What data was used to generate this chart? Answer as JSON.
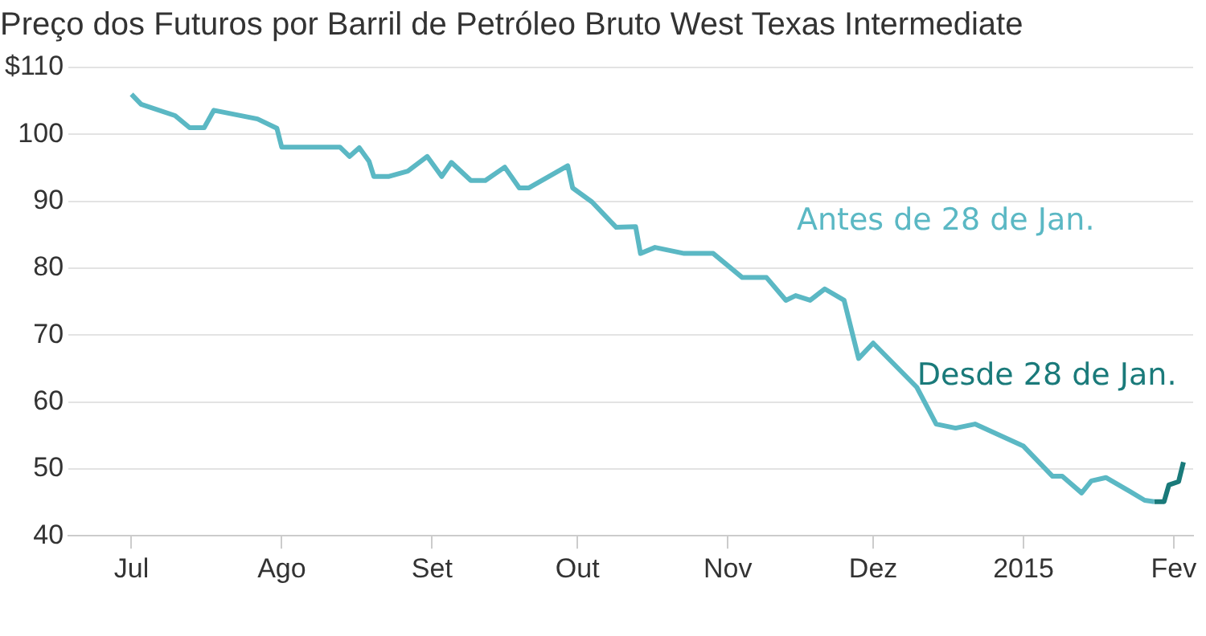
{
  "chart_data": {
    "type": "line",
    "title": "Preço dos Futuros por Barril de Petróleo Bruto West Texas Intermediate",
    "series": [
      {
        "name": "Antes de 28 de Jan.",
        "color": "#5bb8c4",
        "x": [
          "2014-07-01",
          "2014-07-03",
          "2014-07-10",
          "2014-07-13",
          "2014-07-16",
          "2014-07-18",
          "2014-07-27",
          "2014-07-31",
          "2014-08-01",
          "2014-08-13",
          "2014-08-15",
          "2014-08-17",
          "2014-08-19",
          "2014-08-20",
          "2014-08-23",
          "2014-08-27",
          "2014-08-31",
          "2014-09-03",
          "2014-09-05",
          "2014-09-09",
          "2014-09-12",
          "2014-09-16",
          "2014-09-19",
          "2014-09-21",
          "2014-09-29",
          "2014-09-30",
          "2014-10-04",
          "2014-10-09",
          "2014-10-13",
          "2014-10-14",
          "2014-10-17",
          "2014-10-23",
          "2014-10-29",
          "2014-11-04",
          "2014-11-09",
          "2014-11-13",
          "2014-11-15",
          "2014-11-18",
          "2014-11-21",
          "2014-11-25",
          "2014-11-28",
          "2014-12-01",
          "2014-12-10",
          "2014-12-14",
          "2014-12-18",
          "2014-12-22",
          "2015-01-01",
          "2015-01-07",
          "2015-01-09",
          "2015-01-13",
          "2015-01-15",
          "2015-01-18",
          "2015-01-23",
          "2015-01-26",
          "2015-01-28"
        ],
        "values": [
          106,
          104.5,
          102.8,
          101,
          101,
          103.6,
          102.3,
          100.9,
          98.1,
          98.1,
          96.7,
          98,
          96,
          93.7,
          93.7,
          94.5,
          96.7,
          93.7,
          95.8,
          93.1,
          93.1,
          95.1,
          92,
          92,
          95.3,
          92,
          89.9,
          86.1,
          86.2,
          82.2,
          83.1,
          82.2,
          82.2,
          78.6,
          78.6,
          75.2,
          75.9,
          75.2,
          76.9,
          75.2,
          66.5,
          68.8,
          62.2,
          56.7,
          56.1,
          56.7,
          53.4,
          48.9,
          48.9,
          46.4,
          48.2,
          48.7,
          46.6,
          45.3,
          45.1
        ]
      },
      {
        "name": "Desde 28 de Jan.",
        "color": "#1a7a7a",
        "x": [
          "2015-01-28",
          "2015-01-30",
          "2015-01-31",
          "2015-02-02",
          "2015-02-03"
        ],
        "values": [
          45.1,
          45.1,
          47.6,
          48.1,
          51
        ]
      }
    ],
    "xlim": [
      "2014-06-18",
      "2015-02-05"
    ],
    "xticks": [
      {
        "value": "2014-07-01",
        "label": "Jul"
      },
      {
        "value": "2014-08-01",
        "label": "Ago"
      },
      {
        "value": "2014-09-01",
        "label": "Set"
      },
      {
        "value": "2014-10-01",
        "label": "Out"
      },
      {
        "value": "2014-11-01",
        "label": "Nov"
      },
      {
        "value": "2014-12-01",
        "label": "Dez"
      },
      {
        "value": "2015-01-01",
        "label": "2015"
      },
      {
        "value": "2015-02-01",
        "label": "Fev"
      }
    ],
    "ylim": [
      40,
      110
    ],
    "yticks": [
      40,
      50,
      60,
      70,
      80,
      90,
      100,
      {
        "value": 110,
        "label": "$110"
      }
    ],
    "grid": "y",
    "legend": false,
    "marker": "none",
    "line_style": "solid"
  }
}
